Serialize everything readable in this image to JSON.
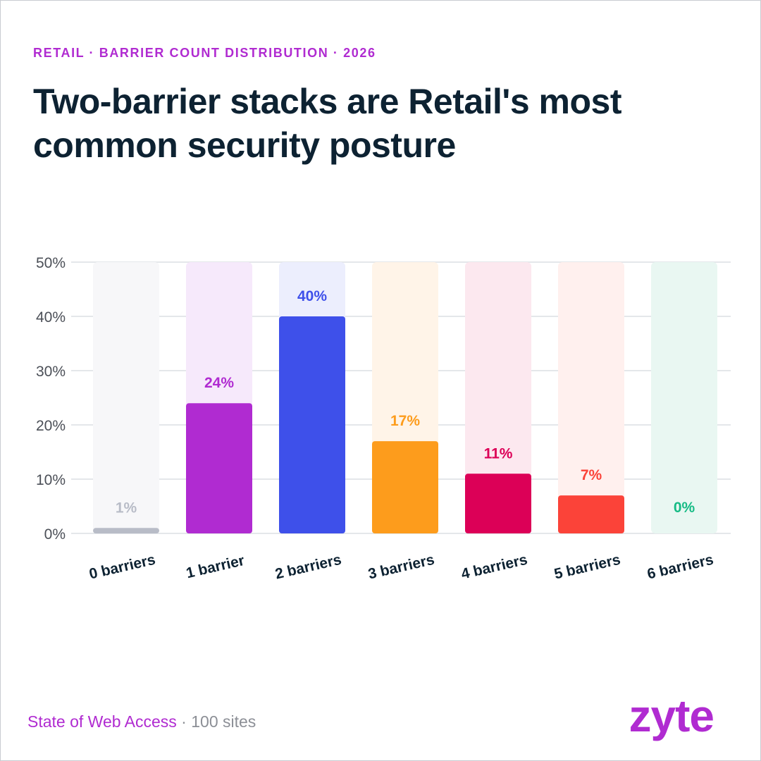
{
  "eyebrow": "RETAIL · BARRIER COUNT DISTRIBUTION · 2026",
  "headline": "Two-barrier stacks are Retail's most common security posture",
  "footer": {
    "source": "State of Web Access",
    "separator": " · ",
    "sample": "100 sites"
  },
  "logo": "zyte",
  "colors": {
    "brand": "#b02bd1",
    "heading": "#0d2232",
    "grid": "#dcdfe4",
    "axis_text": "#4b4f57"
  },
  "chart_data": {
    "type": "bar",
    "categories": [
      "0 barriers",
      "1 barrier",
      "2 barriers",
      "3 barriers",
      "4 barriers",
      "5 barriers",
      "6 barriers"
    ],
    "values": [
      1,
      24,
      40,
      17,
      11,
      7,
      0
    ],
    "value_labels": [
      "1%",
      "24%",
      "40%",
      "17%",
      "11%",
      "7%",
      "0%"
    ],
    "bar_colors": [
      "#b8bcc7",
      "#b02bd1",
      "#3e50ea",
      "#fd9c1c",
      "#dc0057",
      "#fb4339",
      "#16bb85"
    ],
    "label_colors": [
      "#b8bcc7",
      "#b02bd1",
      "#3e50ea",
      "#fd9c1c",
      "#dc0057",
      "#fb4339",
      "#16bb85"
    ],
    "track_colors": [
      "#f7f7f9",
      "#f6e9fb",
      "#eceefd",
      "#fff4e8",
      "#fce8ef",
      "#fff0ee",
      "#e9f7f2"
    ],
    "yticks": [
      "0%",
      "10%",
      "20%",
      "30%",
      "40%",
      "50%"
    ],
    "ylim": [
      0,
      50
    ],
    "ytick_step": 10,
    "grid": true,
    "xlabel": "",
    "ylabel": ""
  }
}
